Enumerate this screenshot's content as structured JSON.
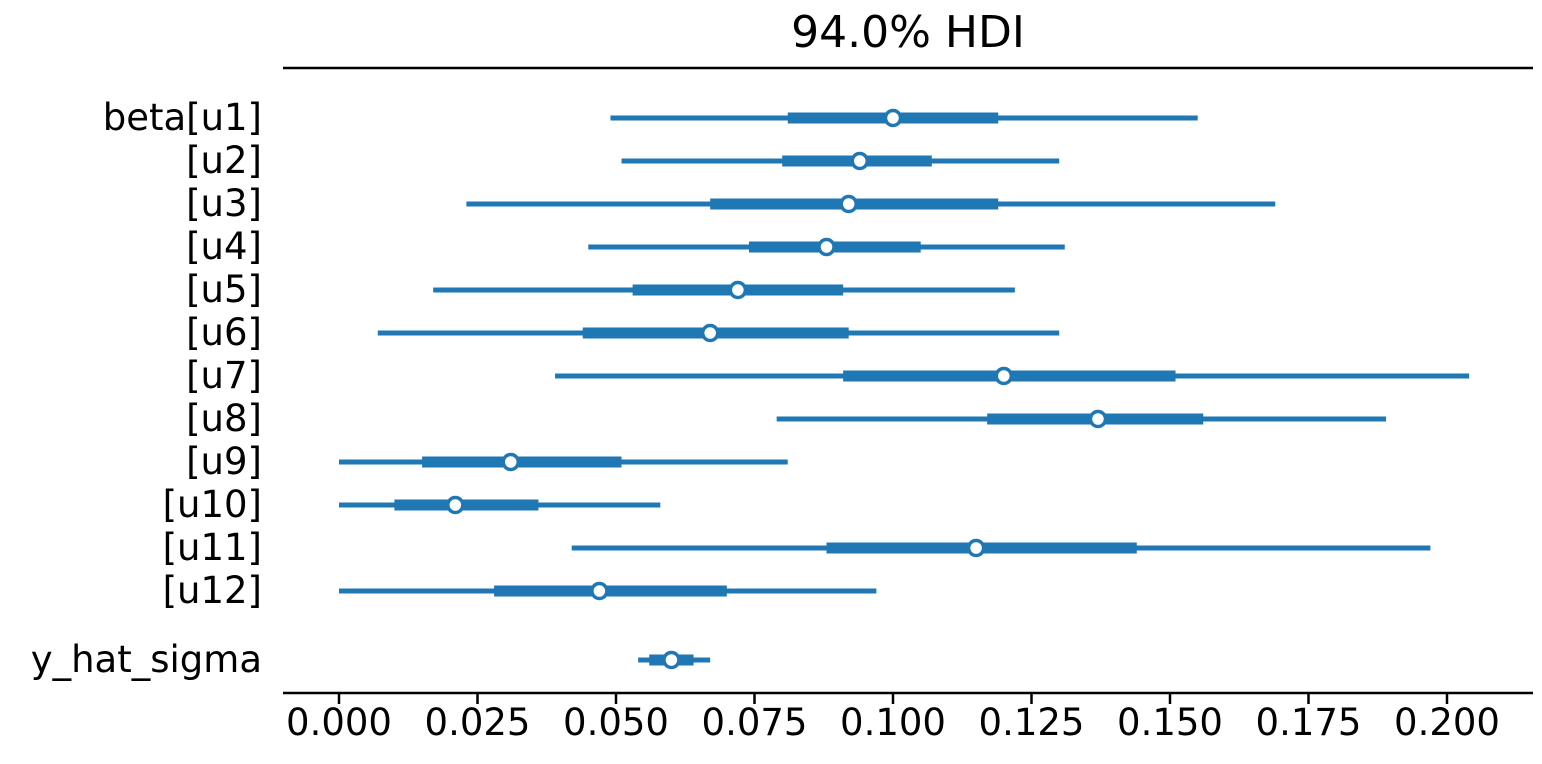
{
  "title": "94.0% HDI",
  "chart_data": {
    "type": "forest",
    "title": "94.0% HDI",
    "hdi_probability": 0.94,
    "line_color": "#1f77b4",
    "spine_color": "#000000",
    "xlabel": "",
    "ylabel": "",
    "xlim": [
      -0.01,
      0.2155
    ],
    "grid": false,
    "legend": false,
    "x_ticks": [
      {
        "value": 0.0,
        "label": "0.000"
      },
      {
        "value": 0.025,
        "label": "0.025"
      },
      {
        "value": 0.05,
        "label": "0.050"
      },
      {
        "value": 0.075,
        "label": "0.075"
      },
      {
        "value": 0.1,
        "label": "0.100"
      },
      {
        "value": 0.125,
        "label": "0.125"
      },
      {
        "value": 0.15,
        "label": "0.150"
      },
      {
        "value": 0.175,
        "label": "0.175"
      },
      {
        "value": 0.2,
        "label": "0.200"
      }
    ],
    "rows": [
      {
        "label": "beta[u1]",
        "group": "beta",
        "hdi_94": [
          0.049,
          0.155
        ],
        "iqr": [
          0.081,
          0.119
        ],
        "median": 0.1
      },
      {
        "label": "[u2]",
        "group": "beta",
        "hdi_94": [
          0.051,
          0.13
        ],
        "iqr": [
          0.08,
          0.107
        ],
        "median": 0.094
      },
      {
        "label": "[u3]",
        "group": "beta",
        "hdi_94": [
          0.023,
          0.169
        ],
        "iqr": [
          0.067,
          0.119
        ],
        "median": 0.092
      },
      {
        "label": "[u4]",
        "group": "beta",
        "hdi_94": [
          0.045,
          0.131
        ],
        "iqr": [
          0.074,
          0.105
        ],
        "median": 0.088
      },
      {
        "label": "[u5]",
        "group": "beta",
        "hdi_94": [
          0.017,
          0.122
        ],
        "iqr": [
          0.053,
          0.091
        ],
        "median": 0.072
      },
      {
        "label": "[u6]",
        "group": "beta",
        "hdi_94": [
          0.007,
          0.13
        ],
        "iqr": [
          0.044,
          0.092
        ],
        "median": 0.067
      },
      {
        "label": "[u7]",
        "group": "beta",
        "hdi_94": [
          0.039,
          0.204
        ],
        "iqr": [
          0.091,
          0.151
        ],
        "median": 0.12
      },
      {
        "label": "[u8]",
        "group": "beta",
        "hdi_94": [
          0.079,
          0.189
        ],
        "iqr": [
          0.117,
          0.156
        ],
        "median": 0.137
      },
      {
        "label": "[u9]",
        "group": "beta",
        "hdi_94": [
          0.0,
          0.081
        ],
        "iqr": [
          0.015,
          0.051
        ],
        "median": 0.031
      },
      {
        "label": "[u10]",
        "group": "beta",
        "hdi_94": [
          0.0,
          0.058
        ],
        "iqr": [
          0.01,
          0.036
        ],
        "median": 0.021
      },
      {
        "label": "[u11]",
        "group": "beta",
        "hdi_94": [
          0.042,
          0.197
        ],
        "iqr": [
          0.088,
          0.144
        ],
        "median": 0.115
      },
      {
        "label": "[u12]",
        "group": "beta",
        "hdi_94": [
          0.0,
          0.097
        ],
        "iqr": [
          0.028,
          0.07
        ],
        "median": 0.047
      },
      {
        "label": "y_hat_sigma",
        "group": "y_hat_sigma",
        "hdi_94": [
          0.054,
          0.067
        ],
        "iqr": [
          0.056,
          0.064
        ],
        "median": 0.06
      }
    ]
  }
}
